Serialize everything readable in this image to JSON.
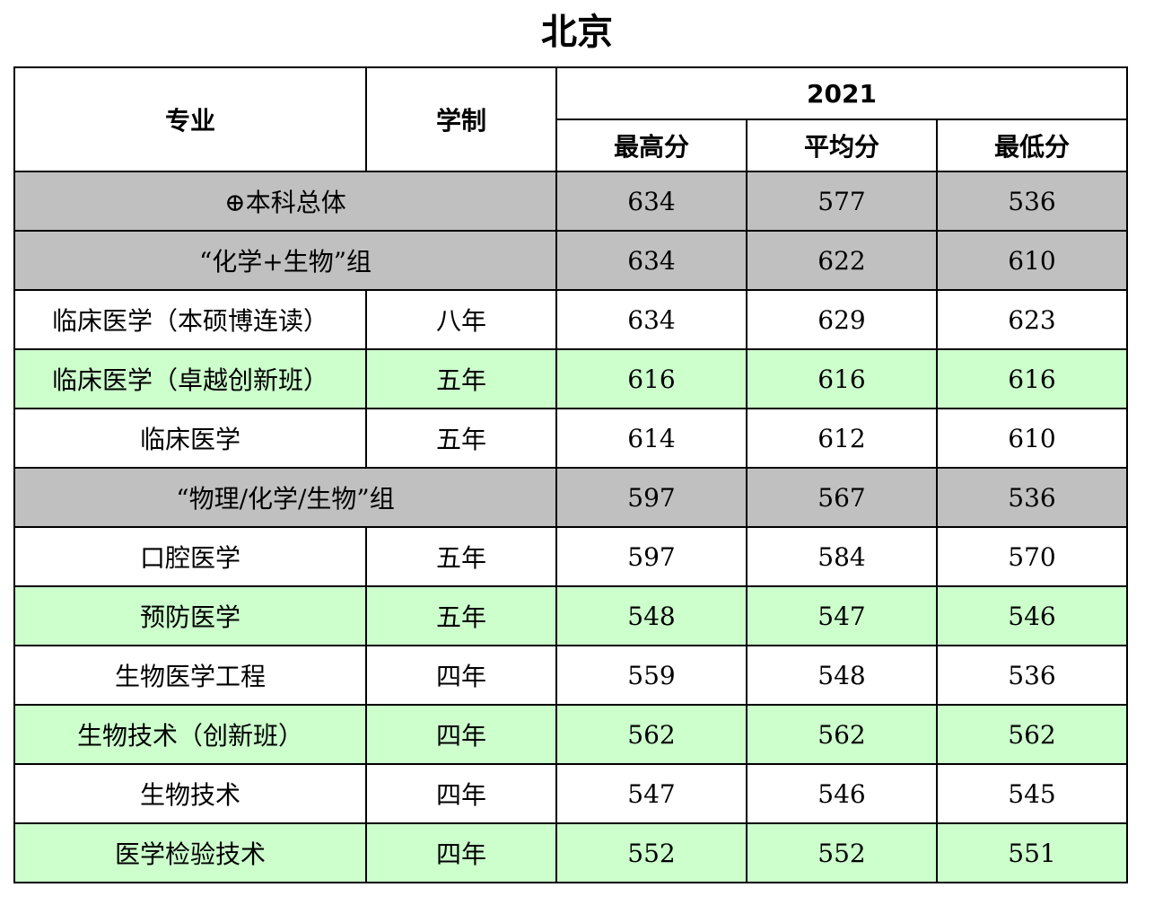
{
  "title": "北京",
  "table": {
    "headers": {
      "major": "专业",
      "duration": "学制",
      "year": "2021",
      "max": "最高分",
      "avg": "平均分",
      "min": "最低分"
    },
    "rows": [
      {
        "type": "group",
        "style": "gray",
        "name": "⊕本科总体",
        "max": "634",
        "avg": "577",
        "min": "536"
      },
      {
        "type": "group",
        "style": "gray",
        "name": "“化学+生物”组",
        "max": "634",
        "avg": "622",
        "min": "610"
      },
      {
        "type": "major",
        "style": "white",
        "name": "临床医学（本硕博连读）",
        "duration": "八年",
        "max": "634",
        "avg": "629",
        "min": "623"
      },
      {
        "type": "major",
        "style": "green",
        "name": "临床医学（卓越创新班）",
        "duration": "五年",
        "max": "616",
        "avg": "616",
        "min": "616"
      },
      {
        "type": "major",
        "style": "white",
        "name": "临床医学",
        "duration": "五年",
        "max": "614",
        "avg": "612",
        "min": "610"
      },
      {
        "type": "group",
        "style": "gray",
        "name": "“物理/化学/生物”组",
        "max": "597",
        "avg": "567",
        "min": "536"
      },
      {
        "type": "major",
        "style": "white",
        "name": "口腔医学",
        "duration": "五年",
        "max": "597",
        "avg": "584",
        "min": "570"
      },
      {
        "type": "major",
        "style": "green",
        "name": "预防医学",
        "duration": "五年",
        "max": "548",
        "avg": "547",
        "min": "546"
      },
      {
        "type": "major",
        "style": "white",
        "name": "生物医学工程",
        "duration": "四年",
        "max": "559",
        "avg": "548",
        "min": "536"
      },
      {
        "type": "major",
        "style": "green",
        "name": "生物技术（创新班）",
        "duration": "四年",
        "max": "562",
        "avg": "562",
        "min": "562"
      },
      {
        "type": "major",
        "style": "white",
        "name": "生物技术",
        "duration": "四年",
        "max": "547",
        "avg": "546",
        "min": "545"
      },
      {
        "type": "major",
        "style": "green",
        "name": "医学检验技术",
        "duration": "四年",
        "max": "552",
        "avg": "552",
        "min": "551"
      }
    ],
    "colors": {
      "group_bg": "#c0c0c0",
      "highlight_bg": "#ccffcc",
      "plain_bg": "#ffffff",
      "border": "#000000"
    }
  }
}
